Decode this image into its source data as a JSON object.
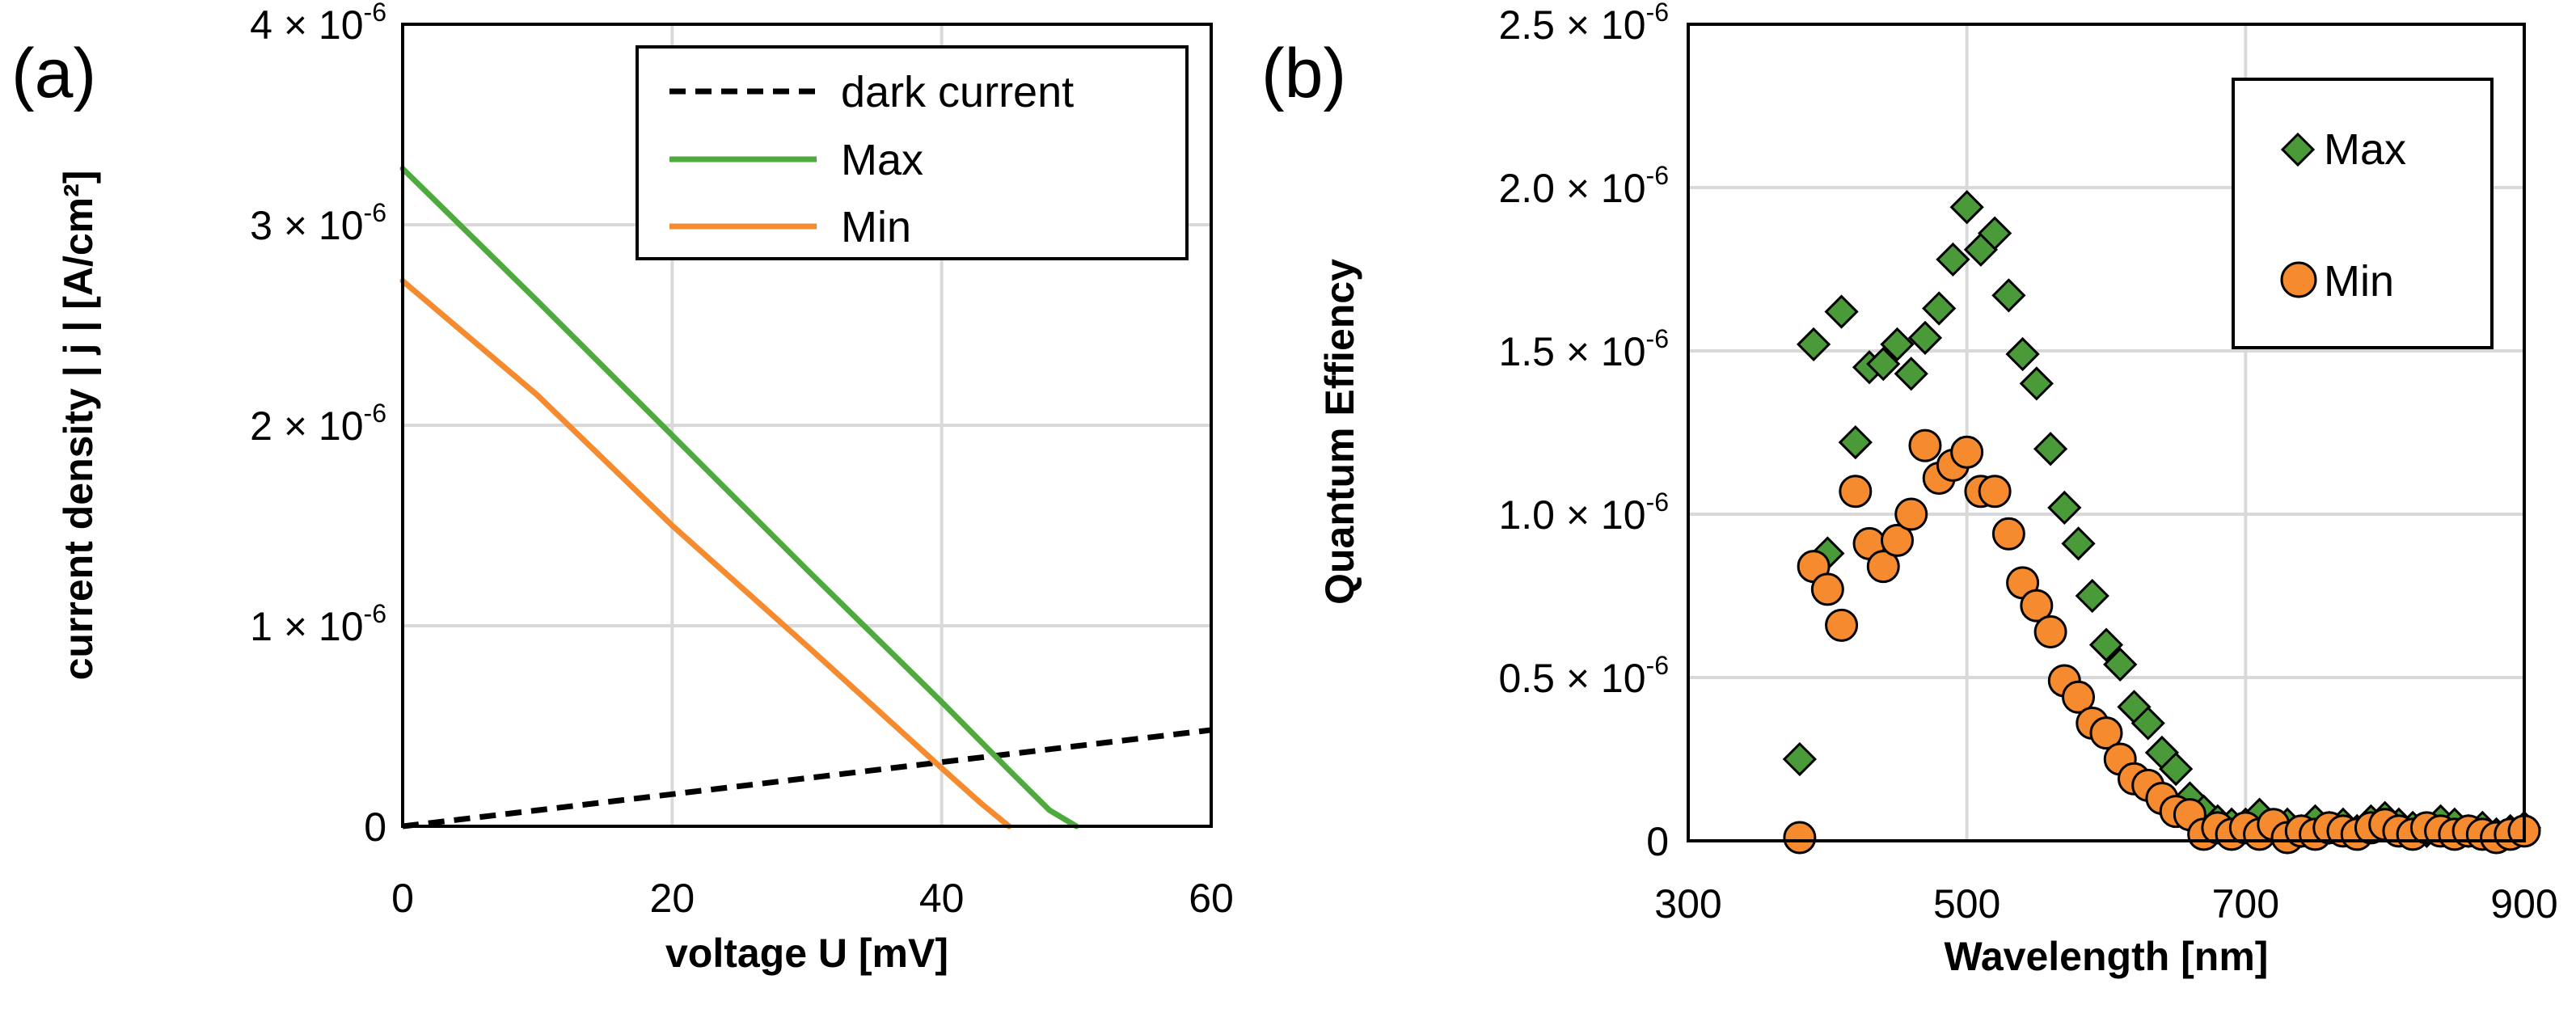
{
  "chart_data": [
    {
      "type": "line",
      "panel_label": "(a)",
      "xlabel": "voltage U [mV]",
      "ylabel": "current density | j | [A/cm²]",
      "xlim": [
        0,
        60
      ],
      "ylim": [
        0,
        4e-06
      ],
      "xticks": [
        0,
        20,
        40,
        60
      ],
      "yticks": [
        0,
        1e-06,
        2e-06,
        3e-06,
        4e-06
      ],
      "ytick_labels": [
        {
          "text": "0",
          "exp": ""
        },
        {
          "text": "1 × 10",
          "exp": "-6"
        },
        {
          "text": "2 × 10",
          "exp": "-6"
        },
        {
          "text": "3 × 10",
          "exp": "-6"
        },
        {
          "text": "4 × 10",
          "exp": "-6"
        }
      ],
      "grid": true,
      "legend_position": "top-right",
      "series": [
        {
          "name": "dark current",
          "color": "#000000",
          "style": "dashed",
          "x": [
            0,
            60
          ],
          "y": [
            0,
            4.8e-07
          ]
        },
        {
          "name": "Max",
          "color": "#4daa3c",
          "style": "solid",
          "x": [
            0,
            10,
            20,
            30,
            40,
            45,
            48,
            50
          ],
          "y": [
            3.28e-06,
            2.62e-06,
            1.95e-06,
            1.28e-06,
            6.2e-07,
            2.8e-07,
            8e-08,
            0
          ]
        },
        {
          "name": "Min",
          "color": "#f58a2e",
          "style": "solid",
          "x": [
            0,
            10,
            20,
            30,
            40,
            43,
            45
          ],
          "y": [
            2.72e-06,
            2.15e-06,
            1.5e-06,
            9e-07,
            2.9e-07,
            1.1e-07,
            0
          ]
        }
      ]
    },
    {
      "type": "scatter",
      "panel_label": "(b)",
      "xlabel": "Wavelength [nm]",
      "ylabel": "Quantum Effiency",
      "xlim": [
        300,
        900
      ],
      "ylim": [
        0,
        2.5e-06
      ],
      "xticks": [
        300,
        500,
        700,
        900
      ],
      "yticks": [
        0,
        5e-07,
        1e-06,
        1.5e-06,
        2e-06,
        2.5e-06
      ],
      "ytick_labels": [
        {
          "text": "0",
          "exp": ""
        },
        {
          "text": "0.5 × 10",
          "exp": "-6"
        },
        {
          "text": "1.0 × 10",
          "exp": "-6"
        },
        {
          "text": "1.5 × 10",
          "exp": "-6"
        },
        {
          "text": "2.0 × 10",
          "exp": "-6"
        },
        {
          "text": "2.5 × 10",
          "exp": "-6"
        }
      ],
      "grid": true,
      "legend_position": "top-right",
      "series": [
        {
          "name": "Max",
          "marker": "diamond",
          "color": "#4a9a3a",
          "x": [
            380,
            390,
            400,
            410,
            420,
            430,
            440,
            450,
            460,
            470,
            480,
            490,
            500,
            510,
            520,
            530,
            540,
            550,
            560,
            570,
            580,
            590,
            600,
            610,
            620,
            630,
            640,
            650,
            660,
            670,
            680,
            690,
            700,
            710,
            720,
            730,
            740,
            750,
            760,
            770,
            780,
            790,
            800,
            810,
            820,
            830,
            840,
            850,
            860,
            870,
            880,
            890,
            900
          ],
          "y": [
            2.5e-07,
            1.52e-06,
            8.8e-07,
            1.62e-06,
            1.22e-06,
            1.45e-06,
            1.46e-06,
            1.52e-06,
            1.43e-06,
            1.54e-06,
            1.63e-06,
            1.78e-06,
            1.94e-06,
            1.81e-06,
            1.86e-06,
            1.67e-06,
            1.49e-06,
            1.4e-06,
            1.2e-06,
            1.02e-06,
            9.1e-07,
            7.5e-07,
            6e-07,
            5.4e-07,
            4.1e-07,
            3.6e-07,
            2.7e-07,
            2.2e-07,
            1.3e-07,
            9e-08,
            6e-08,
            5e-08,
            5e-08,
            8e-08,
            4e-08,
            5e-08,
            3e-08,
            6e-08,
            4e-08,
            5e-08,
            3e-08,
            6e-08,
            7e-08,
            5e-08,
            4e-08,
            3e-08,
            6e-08,
            5e-08,
            3e-08,
            4e-08,
            2e-08,
            3e-08,
            4e-08
          ]
        },
        {
          "name": "Min",
          "marker": "circle",
          "color": "#f58a2e",
          "x": [
            380,
            390,
            400,
            410,
            420,
            430,
            440,
            450,
            460,
            470,
            480,
            490,
            500,
            510,
            520,
            530,
            540,
            550,
            560,
            570,
            580,
            590,
            600,
            610,
            620,
            630,
            640,
            650,
            660,
            670,
            680,
            690,
            700,
            710,
            720,
            730,
            740,
            750,
            760,
            770,
            780,
            790,
            800,
            810,
            820,
            830,
            840,
            850,
            860,
            870,
            880,
            890,
            900
          ],
          "y": [
            1e-08,
            8.4e-07,
            7.7e-07,
            6.6e-07,
            1.07e-06,
            9.1e-07,
            8.4e-07,
            9.2e-07,
            1e-06,
            1.21e-06,
            1.11e-06,
            1.15e-06,
            1.19e-06,
            1.07e-06,
            1.07e-06,
            9.4e-07,
            7.9e-07,
            7.2e-07,
            6.4e-07,
            4.9e-07,
            4.4e-07,
            3.6e-07,
            3.3e-07,
            2.5e-07,
            1.9e-07,
            1.7e-07,
            1.3e-07,
            9e-08,
            8e-08,
            2e-08,
            4e-08,
            2e-08,
            4e-08,
            2e-08,
            5e-08,
            1e-08,
            3e-08,
            2e-08,
            4e-08,
            3e-08,
            2e-08,
            4e-08,
            5e-08,
            3e-08,
            2e-08,
            4e-08,
            3e-08,
            2e-08,
            3e-08,
            2e-08,
            1e-08,
            2e-08,
            3e-08
          ]
        }
      ]
    }
  ]
}
